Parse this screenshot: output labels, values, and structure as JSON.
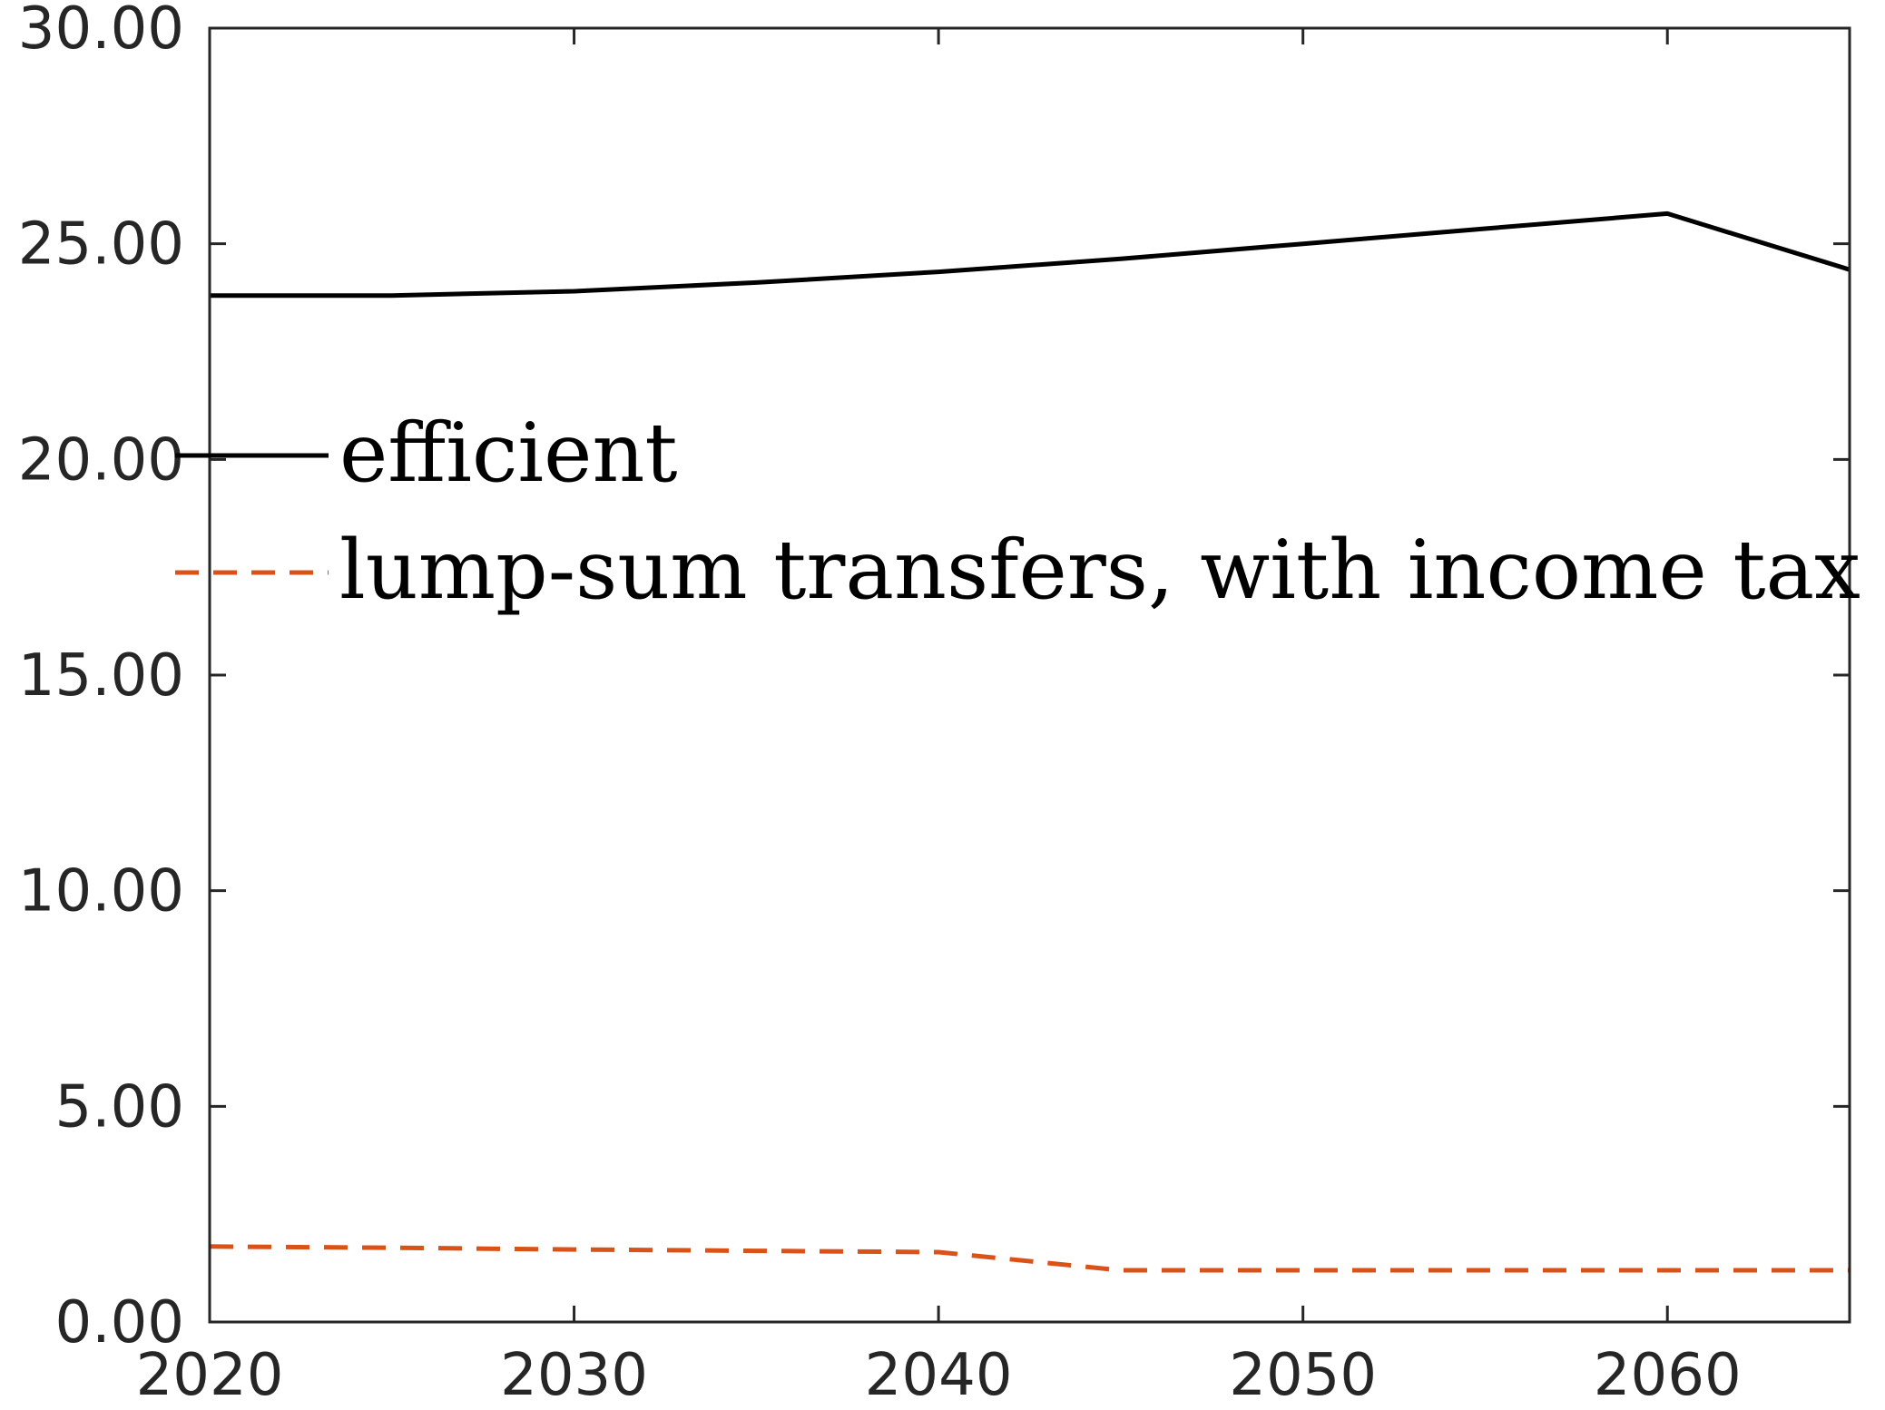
{
  "chart_data": {
    "type": "line",
    "title": "",
    "xlabel": "",
    "ylabel": "",
    "xlim": [
      2020,
      2065
    ],
    "ylim": [
      0,
      30
    ],
    "x_ticks": [
      2020,
      2030,
      2040,
      2050,
      2060
    ],
    "y_ticks": [
      0,
      5,
      10,
      15,
      20,
      25,
      30
    ],
    "x_tick_labels": [
      "2020",
      "2030",
      "2040",
      "2050",
      "2060"
    ],
    "y_tick_labels": [
      "0.00",
      "5.00",
      "10.00",
      "15.00",
      "20.00",
      "25.00",
      "30.00"
    ],
    "grid": false,
    "legend_position": "upper-left",
    "series": [
      {
        "name": "efficient",
        "style": "solid",
        "color": "#000000",
        "x": [
          2020,
          2025,
          2030,
          2035,
          2040,
          2045,
          2050,
          2055,
          2060,
          2065
        ],
        "y": [
          23.8,
          23.8,
          23.9,
          24.1,
          24.35,
          24.65,
          25.0,
          25.35,
          25.7,
          24.4
        ]
      },
      {
        "name": "lump-sum transfers, with income tax",
        "style": "dashed",
        "color": "#D95319",
        "x": [
          2020,
          2025,
          2030,
          2035,
          2040,
          2045,
          2050,
          2055,
          2060,
          2065
        ],
        "y": [
          1.75,
          1.72,
          1.68,
          1.65,
          1.62,
          1.2,
          1.2,
          1.2,
          1.2,
          1.2
        ]
      }
    ]
  }
}
